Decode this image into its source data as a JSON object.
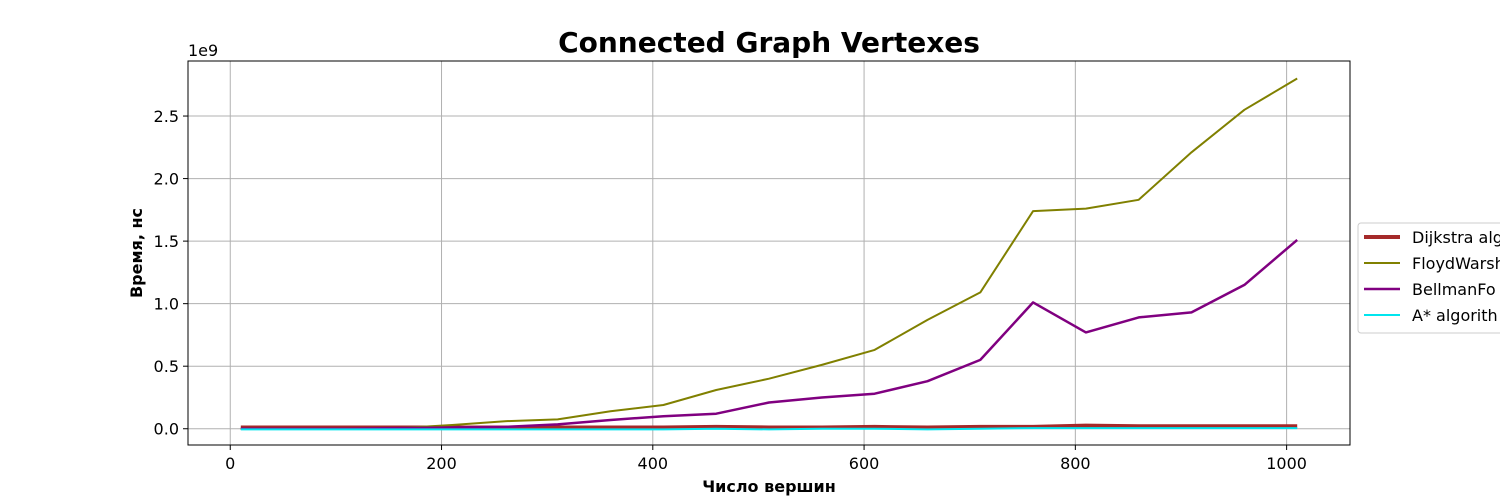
{
  "chart_data": {
    "type": "line",
    "title": "Connected Graph Vertexes",
    "xlabel": "Число вершин",
    "ylabel": "Время, нс",
    "y_scale_note": "1e9",
    "xlim": [
      -40,
      1060
    ],
    "ylim": [
      -0.13,
      2.94
    ],
    "x_ticks": [
      0,
      200,
      400,
      600,
      800,
      1000
    ],
    "x_tick_labels": [
      "0",
      "200",
      "400",
      "600",
      "800",
      "1000"
    ],
    "y_ticks": [
      0.0,
      0.5,
      1.0,
      1.5,
      2.0,
      2.5
    ],
    "y_tick_labels": [
      "0.0",
      "0.5",
      "1.0",
      "1.5",
      "2.0",
      "2.5"
    ],
    "grid": true,
    "legend_position": "center-right",
    "x": [
      10,
      60,
      110,
      160,
      210,
      260,
      310,
      360,
      410,
      460,
      510,
      560,
      610,
      660,
      710,
      760,
      810,
      860,
      910,
      960,
      1010
    ],
    "series": [
      {
        "name": "Dijkstra alg",
        "color": "#a52a2a",
        "width": 4,
        "values": [
          0.01,
          0.01,
          0.01,
          0.01,
          0.01,
          0.01,
          0.01,
          0.01,
          0.01,
          0.015,
          0.01,
          0.01,
          0.015,
          0.01,
          0.015,
          0.015,
          0.025,
          0.02,
          0.02,
          0.02,
          0.02
        ]
      },
      {
        "name": "FloydWarsh",
        "color": "#808000",
        "width": 2,
        "values": [
          0.0,
          0.0,
          0.0,
          0.005,
          0.03,
          0.06,
          0.075,
          0.14,
          0.19,
          0.31,
          0.4,
          0.51,
          0.63,
          0.87,
          1.09,
          1.74,
          1.76,
          1.83,
          2.21,
          2.55,
          2.8
        ]
      },
      {
        "name": "BellmanFo",
        "color": "#800080",
        "width": 2.5,
        "values": [
          0.0,
          0.0,
          0.0,
          0.005,
          0.01,
          0.015,
          0.035,
          0.07,
          0.1,
          0.12,
          0.21,
          0.25,
          0.28,
          0.38,
          0.55,
          1.01,
          0.77,
          0.89,
          0.93,
          1.15,
          1.51
        ]
      },
      {
        "name": "A* algorith",
        "color": "#00e5ee",
        "width": 2,
        "values": [
          -0.005,
          -0.005,
          -0.005,
          -0.005,
          -0.005,
          -0.005,
          -0.005,
          -0.005,
          -0.005,
          0.0,
          -0.005,
          0.0,
          0.0,
          -0.005,
          0.0,
          0.005,
          0.005,
          0.005,
          0.005,
          0.005,
          0.005
        ]
      }
    ]
  }
}
